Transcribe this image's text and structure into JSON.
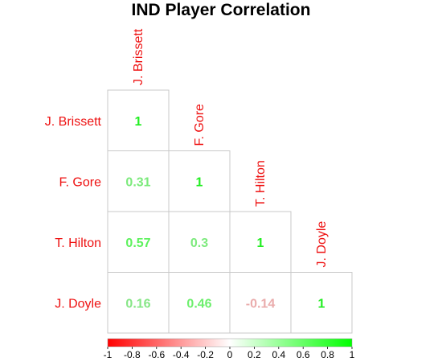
{
  "chart_data": {
    "type": "heatmap",
    "title": "IND Player Correlation",
    "variables": [
      "J. Brissett",
      "F. Gore",
      "T. Hilton",
      "J. Doyle"
    ],
    "matrix": [
      [
        1,
        null,
        null,
        null
      ],
      [
        0.31,
        1,
        null,
        null
      ],
      [
        0.57,
        0.3,
        1,
        null
      ],
      [
        0.16,
        0.46,
        -0.14,
        1
      ]
    ],
    "value_labels": [
      [
        "1",
        "",
        "",
        ""
      ],
      [
        "0.31",
        "1",
        "",
        ""
      ],
      [
        "0.57",
        "0.3",
        "1",
        ""
      ],
      [
        "0.16",
        "0.46",
        "-0.14",
        "1"
      ]
    ],
    "colorbar": {
      "range": [
        -1,
        1
      ],
      "ticks": [
        "-1",
        "-0.8",
        "-0.6",
        "-0.4",
        "-0.2",
        "0",
        "0.2",
        "0.4",
        "0.6",
        "0.8",
        "1"
      ],
      "low_color": "#ff0000",
      "mid_color": "#ffffff",
      "high_color": "#00ff00"
    },
    "label_color": "#ee1111",
    "layout": "lower-triangle",
    "legend": "bottom"
  }
}
